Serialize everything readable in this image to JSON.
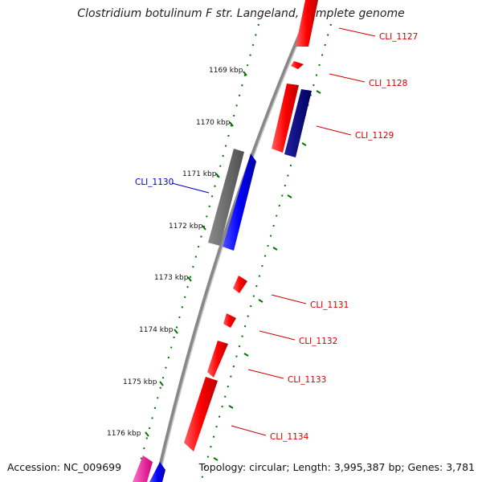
{
  "title": "Clostridium botulinum F str. Langeland, complete genome",
  "accession": "Accession: NC_009699",
  "summary": "Topology: circular; Length: 3,995,387 bp; Genes: 3,781",
  "colors": {
    "forward_gene": "#ff0000",
    "reverse_gene": "#0000ff",
    "dark_blue_gene": "#000080",
    "gray_gene": "#707070",
    "magenta_gene": "#ff2ea8",
    "backbone": "#888888",
    "tick": "#007700",
    "label_red": "#cc0000",
    "label_blue": "#0000cc"
  },
  "ticks": [
    "1169 kbp",
    "1170 kbp",
    "1171 kbp",
    "1172 kbp",
    "1173 kbp",
    "1174 kbp",
    "1175 kbp",
    "1176 kbp"
  ],
  "genes": [
    "CLI_1127",
    "CLI_1128",
    "CLI_1129",
    "CLI_1130",
    "CLI_1131",
    "CLI_1132",
    "CLI_1133",
    "CLI_1134"
  ]
}
